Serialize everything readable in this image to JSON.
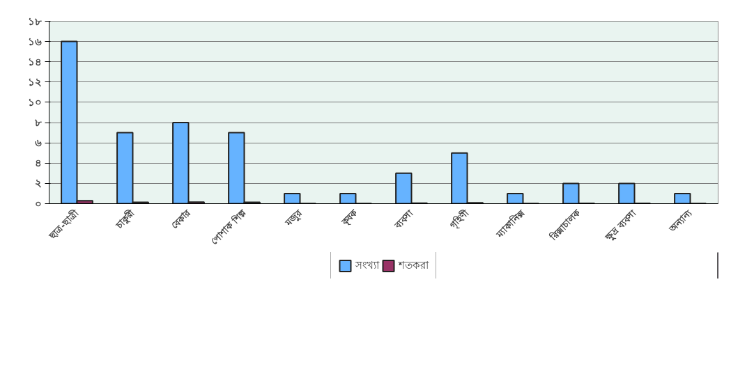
{
  "chart_data": {
    "type": "bar",
    "categories": [
      "ছাত্র-ছাত্রী",
      "চাকুরী",
      "বেকার",
      "পোশাক শিল্প",
      "মজুর",
      "কৃষক",
      "ব্যবসা",
      "গৃহিণী",
      "ম্যাকানিক্স",
      "রিক্সাচালক",
      "ক্ষুদ্র ব্যবসা",
      "অন্যান্য"
    ],
    "series": [
      {
        "name": "সংখ্যা",
        "color": "#66b3ff",
        "values": [
          16,
          7,
          8,
          7,
          1,
          1,
          3,
          5,
          1,
          2,
          2,
          1
        ]
      },
      {
        "name": "শতকরা",
        "color": "#993366",
        "values": [
          0.3,
          0.13,
          0.15,
          0.13,
          0.02,
          0.02,
          0.06,
          0.09,
          0.02,
          0.04,
          0.04,
          0.02
        ]
      }
    ],
    "ylim": [
      0,
      18
    ],
    "yticks": [
      {
        "value": 0,
        "label": "০"
      },
      {
        "value": 2,
        "label": "২"
      },
      {
        "value": 4,
        "label": "৪"
      },
      {
        "value": 6,
        "label": "৬"
      },
      {
        "value": 8,
        "label": "৮"
      },
      {
        "value": 10,
        "label": "১০"
      },
      {
        "value": 12,
        "label": "১২"
      },
      {
        "value": 14,
        "label": "১৪"
      },
      {
        "value": 16,
        "label": "১৬"
      },
      {
        "value": 18,
        "label": "১৮"
      }
    ],
    "grid": "y",
    "legend": "bottom"
  }
}
